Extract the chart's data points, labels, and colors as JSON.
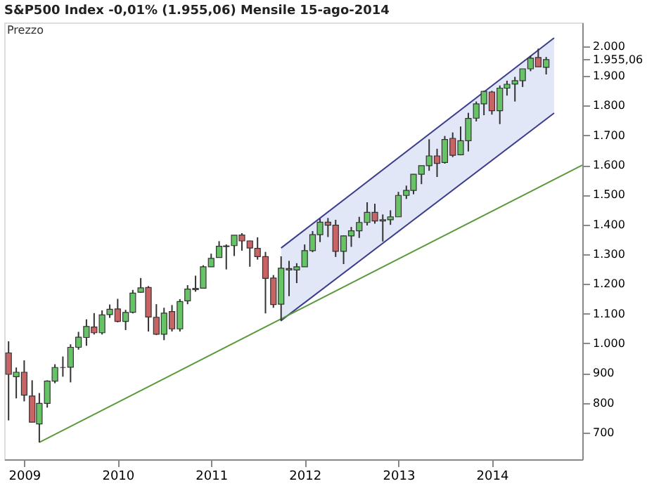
{
  "chart_data": {
    "type": "candlestick",
    "title": "S&P500 Index  -0,01% (1.955,06)  Mensile  15-ago-2014",
    "annotations": [
      "Prezzo"
    ],
    "x": [
      "2008-11",
      "2008-12",
      "2009-01",
      "2009-02",
      "2009-03",
      "2009-04",
      "2009-05",
      "2009-06",
      "2009-07",
      "2009-08",
      "2009-09",
      "2009-10",
      "2009-11",
      "2009-12",
      "2010-01",
      "2010-02",
      "2010-03",
      "2010-04",
      "2010-05",
      "2010-06",
      "2010-07",
      "2010-08",
      "2010-09",
      "2010-10",
      "2010-11",
      "2010-12",
      "2011-01",
      "2011-02",
      "2011-03",
      "2011-04",
      "2011-05",
      "2011-06",
      "2011-07",
      "2011-08",
      "2011-09",
      "2011-10",
      "2011-11",
      "2011-12",
      "2012-01",
      "2012-02",
      "2012-03",
      "2012-04",
      "2012-05",
      "2012-06",
      "2012-07",
      "2012-08",
      "2012-09",
      "2012-10",
      "2012-11",
      "2012-12",
      "2013-01",
      "2013-02",
      "2013-03",
      "2013-04",
      "2013-05",
      "2013-06",
      "2013-07",
      "2013-08",
      "2013-09",
      "2013-10",
      "2013-11",
      "2013-12",
      "2014-01",
      "2014-02",
      "2014-03",
      "2014-04",
      "2014-05",
      "2014-06",
      "2014-07",
      "2014-08"
    ],
    "ohlc": [
      [
        968,
        1007,
        741,
        896
      ],
      [
        888,
        919,
        815,
        903
      ],
      [
        903,
        943,
        805,
        826
      ],
      [
        823,
        876,
        735,
        735
      ],
      [
        729,
        833,
        667,
        798
      ],
      [
        798,
        876,
        784,
        873
      ],
      [
        873,
        930,
        866,
        919
      ],
      [
        919,
        956,
        888,
        919
      ],
      [
        920,
        997,
        869,
        987
      ],
      [
        987,
        1039,
        979,
        1021
      ],
      [
        1020,
        1081,
        992,
        1057
      ],
      [
        1055,
        1102,
        1030,
        1036
      ],
      [
        1036,
        1111,
        1030,
        1096
      ],
      [
        1097,
        1131,
        1086,
        1115
      ],
      [
        1116,
        1150,
        1071,
        1074
      ],
      [
        1074,
        1113,
        1045,
        1104
      ],
      [
        1105,
        1180,
        1101,
        1169
      ],
      [
        1172,
        1220,
        1170,
        1187
      ],
      [
        1188,
        1193,
        1040,
        1089
      ],
      [
        1088,
        1132,
        1028,
        1031
      ],
      [
        1031,
        1120,
        1011,
        1102
      ],
      [
        1107,
        1129,
        1040,
        1049
      ],
      [
        1049,
        1149,
        1040,
        1141
      ],
      [
        1143,
        1196,
        1132,
        1183
      ],
      [
        1185,
        1228,
        1174,
        1181
      ],
      [
        1186,
        1263,
        1186,
        1258
      ],
      [
        1258,
        1302,
        1258,
        1286
      ],
      [
        1289,
        1344,
        1289,
        1327
      ],
      [
        1328,
        1333,
        1249,
        1326
      ],
      [
        1329,
        1364,
        1294,
        1364
      ],
      [
        1365,
        1371,
        1312,
        1345
      ],
      [
        1345,
        1346,
        1258,
        1321
      ],
      [
        1320,
        1357,
        1282,
        1292
      ],
      [
        1292,
        1308,
        1101,
        1219
      ],
      [
        1220,
        1230,
        1120,
        1131
      ],
      [
        1132,
        1293,
        1075,
        1253
      ],
      [
        1252,
        1278,
        1159,
        1247
      ],
      [
        1247,
        1270,
        1203,
        1258
      ],
      [
        1258,
        1333,
        1258,
        1312
      ],
      [
        1312,
        1378,
        1307,
        1366
      ],
      [
        1366,
        1420,
        1341,
        1408
      ],
      [
        1408,
        1422,
        1358,
        1398
      ],
      [
        1398,
        1416,
        1291,
        1310
      ],
      [
        1310,
        1364,
        1267,
        1362
      ],
      [
        1362,
        1392,
        1325,
        1379
      ],
      [
        1379,
        1426,
        1355,
        1407
      ],
      [
        1407,
        1475,
        1397,
        1441
      ],
      [
        1441,
        1470,
        1403,
        1412
      ],
      [
        1412,
        1434,
        1343,
        1416
      ],
      [
        1416,
        1448,
        1399,
        1426
      ],
      [
        1426,
        1510,
        1426,
        1498
      ],
      [
        1498,
        1531,
        1486,
        1515
      ],
      [
        1515,
        1570,
        1502,
        1569
      ],
      [
        1569,
        1598,
        1536,
        1598
      ],
      [
        1598,
        1687,
        1581,
        1631
      ],
      [
        1631,
        1655,
        1560,
        1606
      ],
      [
        1609,
        1698,
        1605,
        1686
      ],
      [
        1690,
        1710,
        1627,
        1633
      ],
      [
        1635,
        1730,
        1633,
        1682
      ],
      [
        1682,
        1776,
        1646,
        1757
      ],
      [
        1758,
        1814,
        1747,
        1806
      ],
      [
        1806,
        1850,
        1768,
        1848
      ],
      [
        1846,
        1850,
        1770,
        1783
      ],
      [
        1783,
        1868,
        1738,
        1859
      ],
      [
        1859,
        1884,
        1834,
        1872
      ],
      [
        1873,
        1897,
        1814,
        1884
      ],
      [
        1884,
        1924,
        1863,
        1924
      ],
      [
        1924,
        1968,
        1916,
        1960
      ],
      [
        1962,
        1992,
        1931,
        1931
      ],
      [
        1929,
        1964,
        1905,
        1955.06
      ]
    ],
    "series": [
      {
        "type": "line",
        "color": "#3c3c8c",
        "x": [
          "2011-10",
          "2014-09"
        ],
        "values": [
          1321,
          2028
        ],
        "lower": [
          1077,
          1775
        ],
        "upper": [
          1321,
          2028
        ]
      },
      {
        "type": "line",
        "color": "#3c3c8c",
        "x": [
          "2011-10",
          "2014-09"
        ],
        "values": [
          1077,
          1775
        ]
      },
      {
        "type": "line",
        "color": "#5a9a3c",
        "x": [
          "2009-03",
          "2014-12-20"
        ],
        "values": [
          667,
          1600
        ]
      }
    ],
    "xlim": [
      "2008-10-15",
      "2014-12-20"
    ],
    "xticks": [
      {
        "value": "2009-01",
        "label": "2009"
      },
      {
        "value": "2010-01",
        "label": "2010"
      },
      {
        "value": "2011-01",
        "label": "2011"
      },
      {
        "value": "2012-01",
        "label": "2012"
      },
      {
        "value": "2013-01",
        "label": "2013"
      },
      {
        "value": "2014-01",
        "label": "2014"
      }
    ],
    "ylim": [
      610,
      2080
    ],
    "yticks": [
      {
        "value": 700,
        "label": "700"
      },
      {
        "value": 800,
        "label": "800"
      },
      {
        "value": 900,
        "label": "900"
      },
      {
        "value": 1000,
        "label": "1.000"
      },
      {
        "value": 1100,
        "label": "1.100"
      },
      {
        "value": 1200,
        "label": "1.200"
      },
      {
        "value": 1300,
        "label": "1.300"
      },
      {
        "value": 1400,
        "label": "1.400"
      },
      {
        "value": 1500,
        "label": "1.500"
      },
      {
        "value": 1600,
        "label": "1.600"
      },
      {
        "value": 1700,
        "label": "1.700"
      },
      {
        "value": 1800,
        "label": "1.800"
      },
      {
        "value": 1900,
        "label": "1.900"
      },
      {
        "value": 1955.06,
        "label": "1.955,06"
      },
      {
        "value": 2000,
        "label": "2.000"
      }
    ],
    "grid": false
  }
}
